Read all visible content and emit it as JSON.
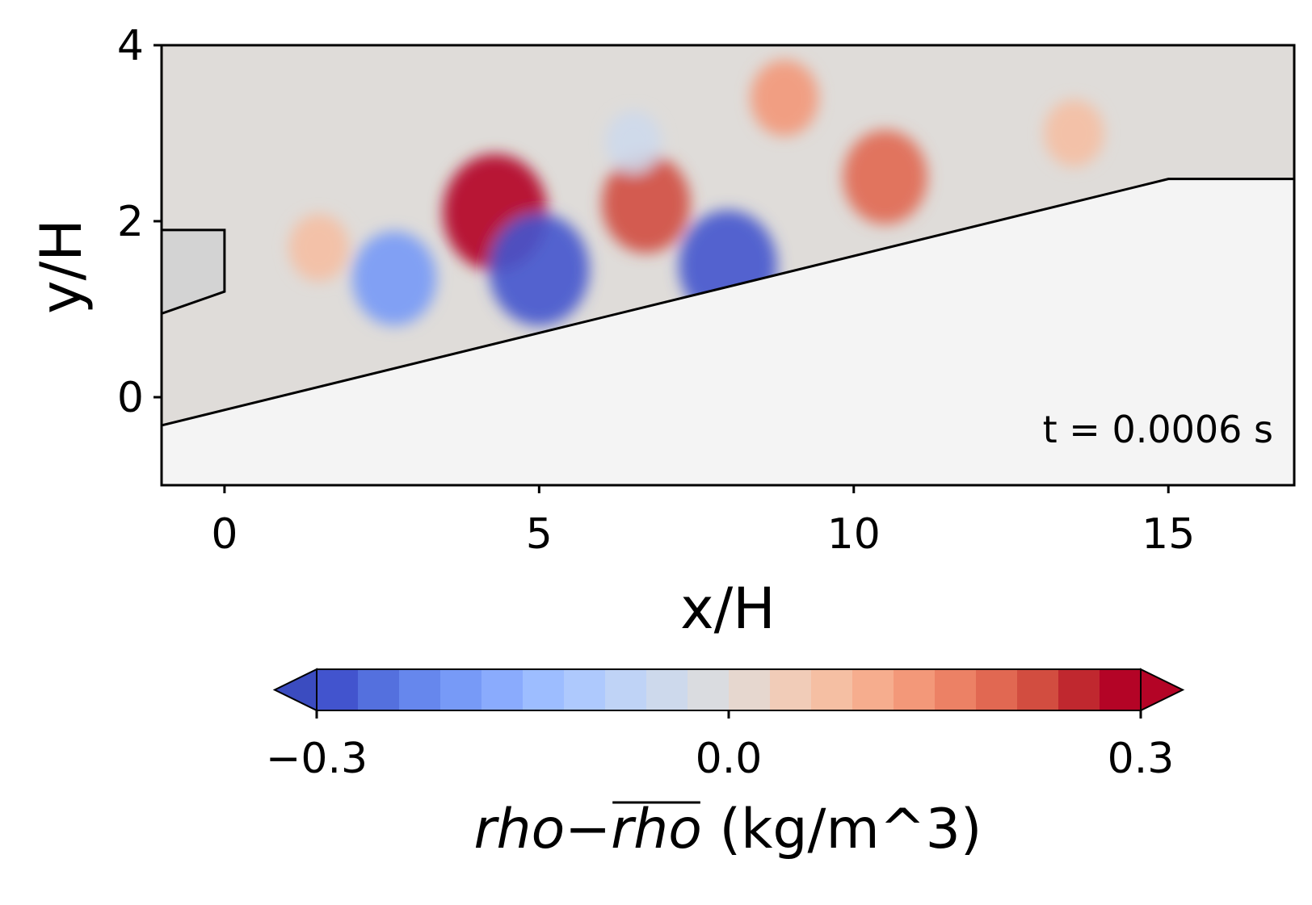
{
  "chart_data": {
    "type": "heatmap",
    "title": "",
    "xlabel": "x/H",
    "ylabel": "y/H",
    "xlim": [
      -1,
      17
    ],
    "ylim": [
      -1,
      4
    ],
    "x_ticks": [
      0,
      5,
      10,
      15
    ],
    "y_ticks": [
      0,
      2,
      4
    ],
    "annotation": "t = 0.0006 s",
    "geometry": {
      "bluff_body": [
        [
          -1,
          1.9
        ],
        [
          0,
          1.9
        ],
        [
          0,
          1.2
        ],
        [
          -1,
          0.95
        ]
      ],
      "ramp_wall": [
        [
          -1,
          -0.32
        ],
        [
          15,
          2.48
        ],
        [
          17,
          2.48
        ]
      ]
    },
    "field_features": [
      {
        "x": 4.3,
        "y": 2.1,
        "value": 0.3
      },
      {
        "x": 5.0,
        "y": 1.45,
        "value": -0.28
      },
      {
        "x": 2.7,
        "y": 1.35,
        "value": -0.2
      },
      {
        "x": 1.5,
        "y": 1.7,
        "value": 0.08
      },
      {
        "x": 6.7,
        "y": 2.2,
        "value": 0.22
      },
      {
        "x": 8.0,
        "y": 1.5,
        "value": -0.27
      },
      {
        "x": 10.5,
        "y": 2.5,
        "value": 0.2
      },
      {
        "x": 8.9,
        "y": 3.4,
        "value": 0.12
      },
      {
        "x": 13.5,
        "y": 3.0,
        "value": 0.08
      },
      {
        "x": 6.5,
        "y": 2.9,
        "value": -0.06
      }
    ],
    "colorbar": {
      "label_main": "rho−",
      "label_over": "rho",
      "label_unit": " (kg/m^3)",
      "min": -0.3,
      "max": 0.3,
      "ticks": [
        -0.3,
        0.0,
        0.3
      ],
      "tick_labels": [
        "−0.3",
        "0.0",
        "0.3"
      ],
      "colormap": "coolwarm",
      "extend": "both",
      "colors": [
        "#4254ce",
        "#5470de",
        "#6687ed",
        "#779af7",
        "#8aabfd",
        "#9dbdff",
        "#aec9fd",
        "#bfd3f6",
        "#cdd9ec",
        "#dadce0",
        "#e6d7cf",
        "#f1ccb8",
        "#f5bfa3",
        "#f6ad8e",
        "#f39879",
        "#ec8165",
        "#e16852",
        "#d24d40",
        "#c0282f",
        "#b40426"
      ],
      "under_color": "#3b4cc0",
      "over_color": "#b40426"
    }
  }
}
